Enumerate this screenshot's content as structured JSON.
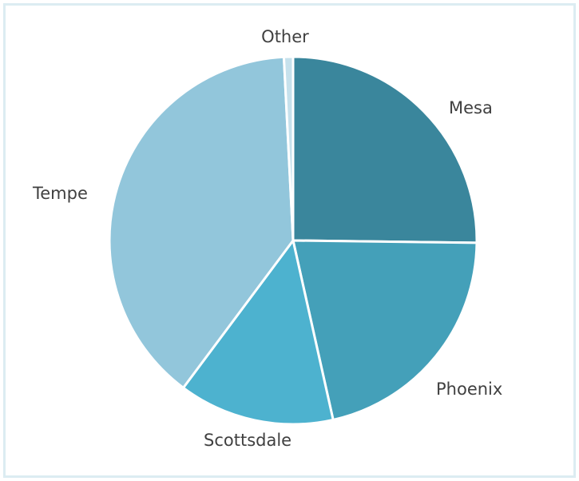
{
  "chart_data": {
    "type": "pie",
    "title": "",
    "slices": [
      {
        "label": "Mesa",
        "value": 25.2,
        "color": "#3a869c"
      },
      {
        "label": "Phoenix",
        "value": 21.3,
        "color": "#44a0b9"
      },
      {
        "label": "Scottsdale",
        "value": 13.7,
        "color": "#4db2cf"
      },
      {
        "label": "Tempe",
        "value": 39.0,
        "color": "#92c6db"
      },
      {
        "label": "Other",
        "value": 0.8,
        "color": "#c6e1ec"
      }
    ],
    "start_angle_deg": 0,
    "direction": "clockwise",
    "legend": "none",
    "label_placement": "outside"
  },
  "colors": {
    "frame_border": "#dcecf2",
    "slice_separator": "#ffffff",
    "label_text": "#404040"
  }
}
